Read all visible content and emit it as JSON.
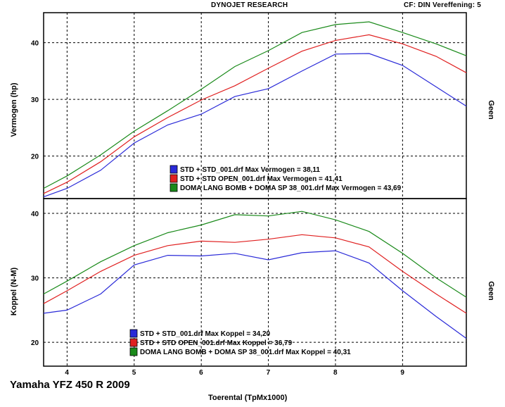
{
  "header": {
    "title": "DYNOJET RESEARCH",
    "cf": "CF: DIN   Vereffening: 5"
  },
  "caption": "Yamaha YFZ 450 R 2009",
  "colors": {
    "blue": "#2a2ad8",
    "red": "#e02020",
    "green": "#1a8a1a",
    "grid": "#000000"
  },
  "chart_data": [
    {
      "type": "line",
      "ylabel": "Vermogen (hp)",
      "right_label": "Geen",
      "xlim": [
        3.65,
        9.95
      ],
      "ylim": [
        12.5,
        45.3
      ],
      "yticks": [
        20,
        30,
        40
      ],
      "xticks": [
        4,
        5,
        6,
        7,
        8,
        9
      ],
      "grid": true,
      "x": [
        3.65,
        4.0,
        4.5,
        5.0,
        5.5,
        6.0,
        6.5,
        7.0,
        7.5,
        8.0,
        8.5,
        9.0,
        9.5,
        9.95
      ],
      "series": [
        {
          "name": "STD + STD_001.drf",
          "color": "blue",
          "values": [
            12.8,
            14.3,
            17.5,
            22.3,
            25.5,
            27.4,
            30.5,
            31.9,
            35.0,
            38.0,
            38.1,
            36.0,
            32.2,
            28.8
          ],
          "legend": "STD + STD_001.drf Max Vermogen = 38,11"
        },
        {
          "name": "STD + STD OPEN_001.drf",
          "color": "red",
          "values": [
            13.4,
            15.4,
            19.0,
            23.4,
            26.8,
            29.9,
            32.4,
            35.5,
            38.5,
            40.4,
            41.4,
            39.8,
            37.6,
            34.7
          ],
          "legend": "STD + STD OPEN_001.drf Max Vermogen = 41,41"
        },
        {
          "name": "DOMA LANG BOMB + DOMA SP 38_001.drf",
          "color": "green",
          "values": [
            14.3,
            16.5,
            20.2,
            24.4,
            28.0,
            31.8,
            35.8,
            38.6,
            41.8,
            43.2,
            43.69,
            41.8,
            39.8,
            37.7
          ],
          "legend": "DOMA LANG BOMB + DOMA SP 38_001.drf Max Vermogen = 43,69"
        }
      ]
    },
    {
      "type": "line",
      "ylabel": "Koppel (N-M)",
      "right_label": "Geen",
      "xlabel": "Toerental (TpMx1000)",
      "xlim": [
        3.65,
        9.95
      ],
      "ylim": [
        16.3,
        42.3
      ],
      "yticks": [
        20,
        30,
        40
      ],
      "xticks": [
        4,
        5,
        6,
        7,
        8,
        9
      ],
      "xticklabels": [
        "4",
        "5",
        "6",
        "7",
        "8",
        "9"
      ],
      "grid": true,
      "x": [
        3.65,
        4.0,
        4.5,
        5.0,
        5.5,
        6.0,
        6.5,
        7.0,
        7.5,
        8.0,
        8.5,
        9.0,
        9.5,
        9.95
      ],
      "series": [
        {
          "name": "STD + STD_001.drf",
          "color": "blue",
          "values": [
            24.5,
            25.0,
            27.5,
            32.0,
            33.5,
            33.4,
            33.8,
            32.8,
            33.9,
            34.2,
            32.3,
            28.0,
            24.0,
            20.6
          ],
          "legend": "STD + STD_001.drf Max Koppel = 34,20"
        },
        {
          "name": "STD + STD OPEN_001.drf",
          "color": "red",
          "values": [
            26.0,
            28.0,
            31.0,
            33.5,
            35.0,
            35.7,
            35.5,
            36.0,
            36.7,
            36.2,
            34.8,
            31.0,
            27.5,
            24.5
          ],
          "legend": "STD + STD OPEN_001.drf Max Koppel = 36,79"
        },
        {
          "name": "DOMA LANG BOMB + DOMA SP 38_001.drf",
          "color": "green",
          "values": [
            27.5,
            29.5,
            32.5,
            35.0,
            37.0,
            38.2,
            39.8,
            39.6,
            40.31,
            39.0,
            37.2,
            33.8,
            30.0,
            27.0
          ],
          "legend": "DOMA LANG BOMB + DOMA SP 38_001.drf Max Koppel = 40,31"
        }
      ]
    }
  ]
}
